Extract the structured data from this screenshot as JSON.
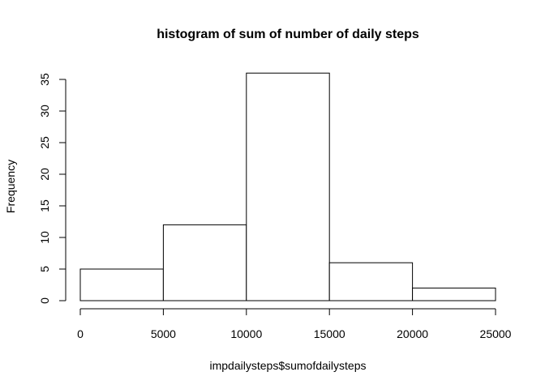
{
  "chart_data": {
    "type": "bar",
    "title": "histogram of sum of number of daily steps",
    "xlabel": "impdailysteps$sumofdailysteps",
    "ylabel": "Frequency",
    "bins": [
      {
        "from": 0,
        "to": 5000,
        "count": 5
      },
      {
        "from": 5000,
        "to": 10000,
        "count": 12
      },
      {
        "from": 10000,
        "to": 15000,
        "count": 36
      },
      {
        "from": 15000,
        "to": 20000,
        "count": 6
      },
      {
        "from": 20000,
        "to": 25000,
        "count": 2
      }
    ],
    "xlim": [
      0,
      25000
    ],
    "ylim": [
      0,
      35
    ],
    "xticks": [
      "0",
      "5000",
      "10000",
      "15000",
      "20000",
      "25000"
    ],
    "yticks": [
      "0",
      "5",
      "10",
      "15",
      "20",
      "25",
      "30",
      "35"
    ],
    "grid": false,
    "bar_fill": "#ffffff",
    "bar_stroke": "#000000"
  }
}
